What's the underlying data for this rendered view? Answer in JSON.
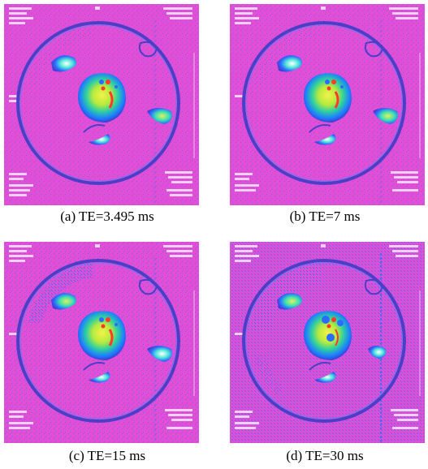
{
  "figure": {
    "panels": [
      {
        "id": "a",
        "caption": "(a) TE=3.495 ms"
      },
      {
        "id": "b",
        "caption": "(b) TE=7 ms"
      },
      {
        "id": "c",
        "caption": "(c) TE=15 ms"
      },
      {
        "id": "d",
        "caption": "(d) TE=30 ms"
      }
    ]
  },
  "colors": {
    "background": "#e24fd6",
    "ring": "#4b3fc8",
    "speckle": "#3a7cff",
    "center_hot": "#e8f040",
    "center_mid": "#2fd0a0",
    "center_edge": "#1e5cff",
    "red_spot": "#ff3a2a"
  }
}
